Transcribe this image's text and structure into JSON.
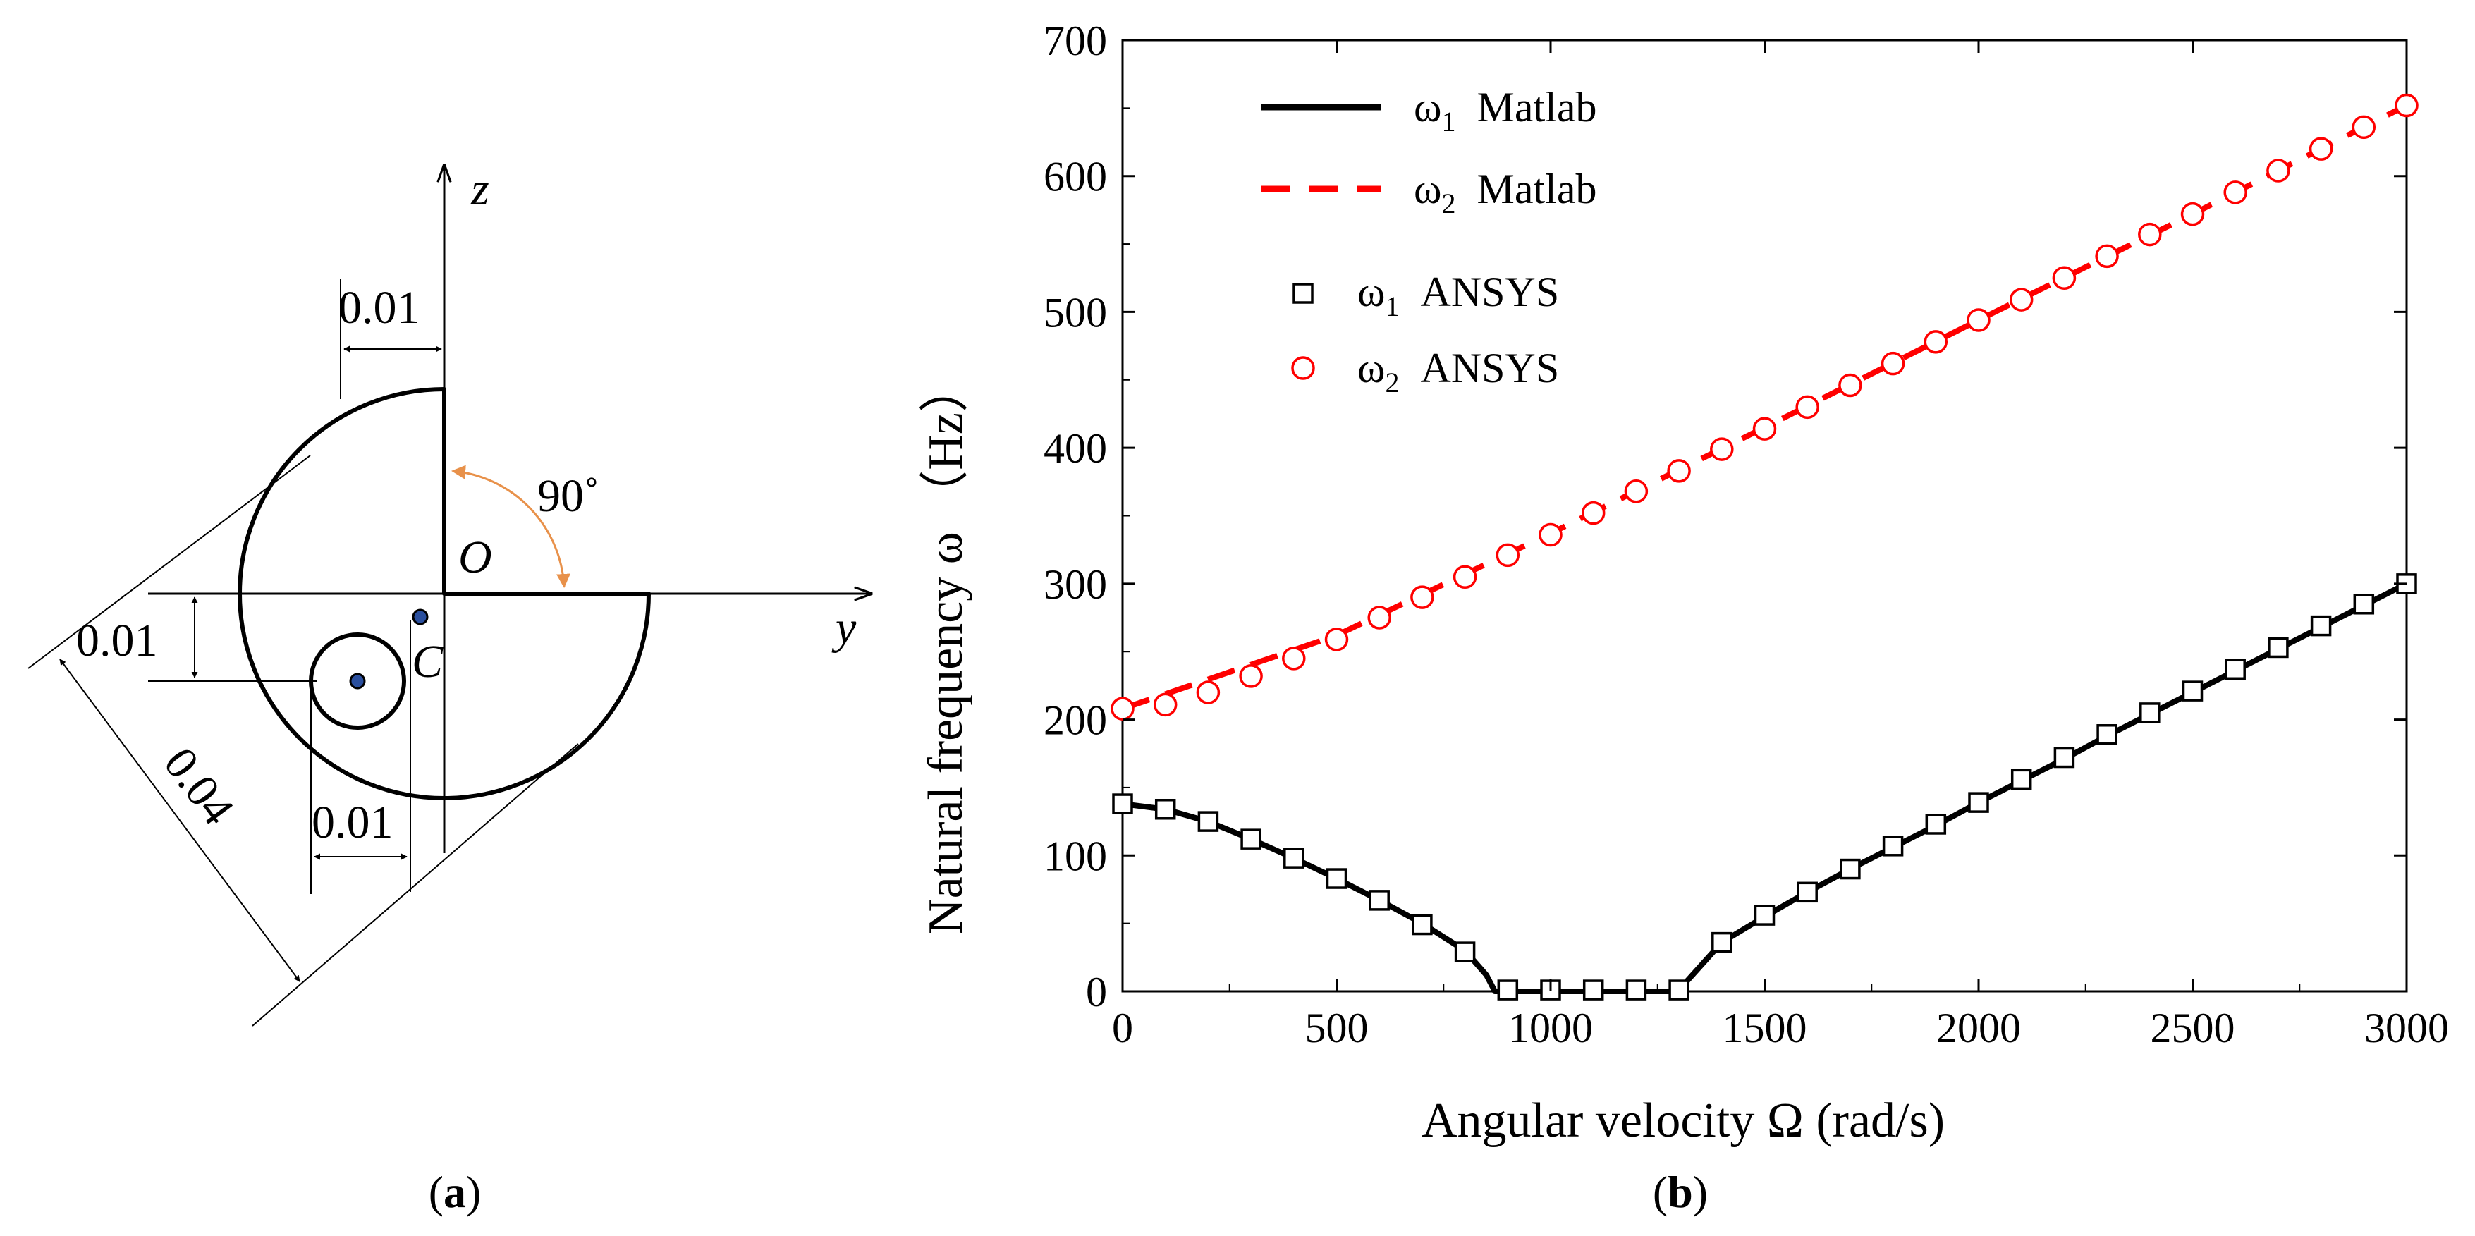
{
  "panel_a": {
    "caption_open": "(",
    "caption_letter": "a",
    "caption_close": ")",
    "axis_z": "z",
    "axis_y": "y",
    "label_O": "O",
    "label_C": "C",
    "angle_label": "90˚",
    "dim_top": "0.01",
    "dim_left": "0.01",
    "dim_bottom": "0.01",
    "dim_diag": "0.04",
    "colors": {
      "angle_arrow": "#e8914a",
      "dot": "#2a4f9e"
    }
  },
  "panel_b": {
    "caption_open": "(",
    "caption_letter": "b",
    "caption_close": ")"
  },
  "chart_data": {
    "type": "line",
    "title": "",
    "xlabel": "Angular velocity Ω (rad/s)",
    "ylabel": "Natural frequency ω （Hz）",
    "xlim": [
      0,
      3000
    ],
    "ylim": [
      0,
      700
    ],
    "x_ticks": [
      0,
      500,
      1000,
      1500,
      2000,
      2500,
      3000
    ],
    "y_ticks": [
      0,
      100,
      200,
      300,
      400,
      500,
      600,
      700
    ],
    "legend_position": "top-left",
    "legend": [
      {
        "sym": "ω",
        "sub": "1",
        "src": "Matlab",
        "style": "solid-line",
        "color": "#000000"
      },
      {
        "sym": "ω",
        "sub": "2",
        "src": "Matlab",
        "style": "dashed-line",
        "color": "#ff0000"
      },
      {
        "sym": "ω",
        "sub": "1",
        "src": "ANSYS",
        "style": "square-marker",
        "color": "#000000"
      },
      {
        "sym": "ω",
        "sub": "2",
        "src": "ANSYS",
        "style": "circle-marker",
        "color": "#ff0000"
      }
    ],
    "series": [
      {
        "name": "ω1 Matlab",
        "color": "#000000",
        "style": "solid",
        "x": [
          0,
          100,
          200,
          300,
          400,
          500,
          600,
          700,
          800,
          850,
          870,
          1300,
          1320,
          1400,
          1500,
          1600,
          1700,
          1800,
          1900,
          2000,
          2100,
          2200,
          2300,
          2400,
          2500,
          2600,
          2700,
          2800,
          2900,
          3000
        ],
        "y": [
          138,
          134,
          125,
          112,
          98,
          83,
          67,
          50,
          30,
          12,
          0,
          0,
          8,
          36,
          55,
          73,
          90,
          106,
          122,
          139,
          155,
          171,
          188,
          204,
          220,
          236,
          252,
          268,
          284,
          300
        ]
      },
      {
        "name": "ω2 Matlab",
        "color": "#ff0000",
        "style": "dashed",
        "x": [
          0,
          500,
          1000,
          1500,
          2000,
          2500,
          3000
        ],
        "y": [
          208,
          262,
          337,
          415,
          494,
          572,
          652
        ]
      },
      {
        "name": "ω1 ANSYS",
        "color": "#000000",
        "marker": "square",
        "x": [
          0,
          100,
          200,
          300,
          400,
          500,
          600,
          700,
          800,
          900,
          1000,
          1100,
          1200,
          1300,
          1400,
          1500,
          1600,
          1700,
          1800,
          1900,
          2000,
          2100,
          2200,
          2300,
          2400,
          2500,
          2600,
          2700,
          2800,
          2900,
          3000
        ],
        "y": [
          138,
          134,
          125,
          112,
          98,
          83,
          67,
          49,
          29,
          1,
          1,
          1,
          1,
          1,
          36,
          56,
          73,
          90,
          107,
          123,
          139,
          156,
          172,
          189,
          205,
          221,
          237,
          253,
          269,
          285,
          300
        ]
      },
      {
        "name": "ω2 ANSYS",
        "color": "#ff0000",
        "marker": "circle",
        "x": [
          0,
          100,
          200,
          300,
          400,
          500,
          600,
          700,
          800,
          900,
          1000,
          1100,
          1200,
          1300,
          1400,
          1500,
          1600,
          1700,
          1800,
          1900,
          2000,
          2100,
          2200,
          2300,
          2400,
          2500,
          2600,
          2700,
          2800,
          2900,
          3000
        ],
        "y": [
          208,
          211,
          220,
          232,
          245,
          259,
          275,
          290,
          305,
          321,
          336,
          352,
          368,
          383,
          399,
          414,
          430,
          446,
          462,
          478,
          494,
          509,
          525,
          541,
          557,
          572,
          588,
          604,
          620,
          636,
          652
        ]
      }
    ]
  }
}
